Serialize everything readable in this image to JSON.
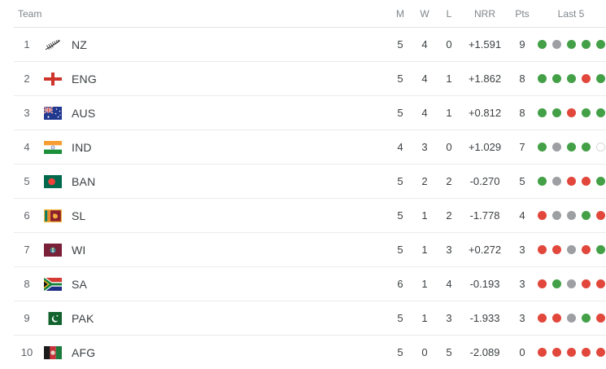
{
  "table": {
    "columns": {
      "team": "Team",
      "m": "M",
      "w": "W",
      "l": "L",
      "nrr": "NRR",
      "pts": "Pts",
      "last5": "Last 5"
    },
    "result_colors": {
      "win": "#43a047",
      "loss": "#e2473c",
      "no_result": "#9d9fa2",
      "not_played": "#ffffff",
      "not_played_border": "#d8d8d8"
    },
    "rows": [
      {
        "rank": "1",
        "team": "NZ",
        "flag": "nz",
        "m": "5",
        "w": "4",
        "l": "0",
        "nrr": "+1.591",
        "pts": "9",
        "last5": [
          "w",
          "n",
          "w",
          "w",
          "w"
        ]
      },
      {
        "rank": "2",
        "team": "ENG",
        "flag": "eng",
        "m": "5",
        "w": "4",
        "l": "1",
        "nrr": "+1.862",
        "pts": "8",
        "last5": [
          "w",
          "w",
          "w",
          "l",
          "w"
        ]
      },
      {
        "rank": "3",
        "team": "AUS",
        "flag": "aus",
        "m": "5",
        "w": "4",
        "l": "1",
        "nrr": "+0.812",
        "pts": "8",
        "last5": [
          "w",
          "w",
          "l",
          "w",
          "w"
        ]
      },
      {
        "rank": "4",
        "team": "IND",
        "flag": "ind",
        "m": "4",
        "w": "3",
        "l": "0",
        "nrr": "+1.029",
        "pts": "7",
        "last5": [
          "w",
          "n",
          "w",
          "w",
          "e"
        ]
      },
      {
        "rank": "5",
        "team": "BAN",
        "flag": "ban",
        "m": "5",
        "w": "2",
        "l": "2",
        "nrr": "-0.270",
        "pts": "5",
        "last5": [
          "w",
          "n",
          "l",
          "l",
          "w"
        ]
      },
      {
        "rank": "6",
        "team": "SL",
        "flag": "sl",
        "m": "5",
        "w": "1",
        "l": "2",
        "nrr": "-1.778",
        "pts": "4",
        "last5": [
          "l",
          "n",
          "n",
          "w",
          "l"
        ]
      },
      {
        "rank": "7",
        "team": "WI",
        "flag": "wi",
        "m": "5",
        "w": "1",
        "l": "3",
        "nrr": "+0.272",
        "pts": "3",
        "last5": [
          "l",
          "l",
          "n",
          "l",
          "w"
        ]
      },
      {
        "rank": "8",
        "team": "SA",
        "flag": "sa",
        "m": "6",
        "w": "1",
        "l": "4",
        "nrr": "-0.193",
        "pts": "3",
        "last5": [
          "l",
          "w",
          "n",
          "l",
          "l"
        ]
      },
      {
        "rank": "9",
        "team": "PAK",
        "flag": "pak",
        "m": "5",
        "w": "1",
        "l": "3",
        "nrr": "-1.933",
        "pts": "3",
        "last5": [
          "l",
          "l",
          "n",
          "w",
          "l"
        ]
      },
      {
        "rank": "10",
        "team": "AFG",
        "flag": "afg",
        "m": "5",
        "w": "0",
        "l": "5",
        "nrr": "-2.089",
        "pts": "0",
        "last5": [
          "l",
          "l",
          "l",
          "l",
          "l"
        ]
      }
    ]
  }
}
